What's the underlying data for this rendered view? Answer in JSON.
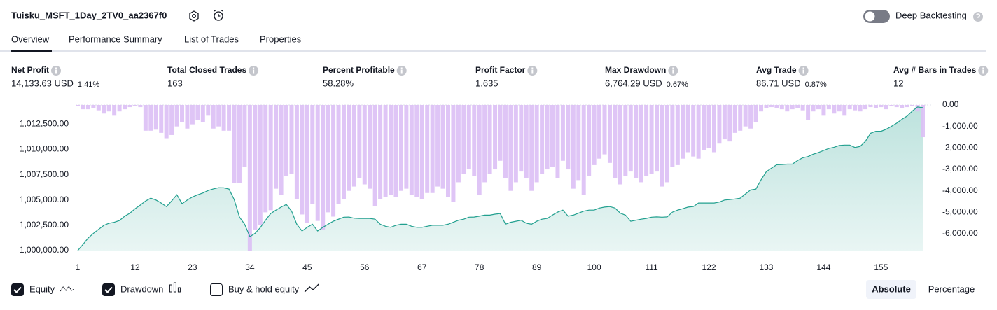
{
  "header": {
    "title": "Tuisku_MSFT_1Day_2TV0_aa2367f0",
    "toggle_label": "Deep Backtesting"
  },
  "tabs": [
    "Overview",
    "Performance Summary",
    "List of Trades",
    "Properties"
  ],
  "metrics": [
    {
      "label": "Net Profit",
      "value": "14,133.63 USD",
      "percent": "1.41%",
      "color": "#22ab94"
    },
    {
      "label": "Total Closed Trades",
      "value": "163",
      "color": "#131722"
    },
    {
      "label": "Percent Profitable",
      "value": "58.28%",
      "color": "#22ab94"
    },
    {
      "label": "Profit Factor",
      "value": "1.635",
      "color": "#22ab94"
    },
    {
      "label": "Max Drawdown",
      "value": "6,764.29 USD",
      "percent": "0.67%",
      "color": "#f23645"
    },
    {
      "label": "Avg Trade",
      "value": "86.71 USD",
      "percent": "0.87%",
      "color": "#22ab94"
    },
    {
      "label": "Avg # Bars in Trades",
      "value": "12",
      "color": "#131722"
    }
  ],
  "chart_data": {
    "type": "combo",
    "x": [
      1,
      2,
      3,
      4,
      5,
      6,
      7,
      8,
      9,
      10,
      11,
      12,
      13,
      14,
      15,
      16,
      17,
      18,
      19,
      20,
      21,
      22,
      23,
      24,
      25,
      26,
      27,
      28,
      29,
      30,
      31,
      32,
      33,
      34,
      35,
      36,
      37,
      38,
      39,
      40,
      41,
      42,
      43,
      44,
      45,
      46,
      47,
      48,
      49,
      50,
      51,
      52,
      53,
      54,
      55,
      56,
      57,
      58,
      59,
      60,
      61,
      62,
      63,
      64,
      65,
      66,
      67,
      68,
      69,
      70,
      71,
      72,
      73,
      74,
      75,
      76,
      77,
      78,
      79,
      80,
      81,
      82,
      83,
      84,
      85,
      86,
      87,
      88,
      89,
      90,
      91,
      92,
      93,
      94,
      95,
      96,
      97,
      98,
      99,
      100,
      101,
      102,
      103,
      104,
      105,
      106,
      107,
      108,
      109,
      110,
      111,
      112,
      113,
      114,
      115,
      116,
      117,
      118,
      119,
      120,
      121,
      122,
      123,
      124,
      125,
      126,
      127,
      128,
      129,
      130,
      131,
      132,
      133,
      134,
      135,
      136,
      137,
      138,
      139,
      140,
      141,
      142,
      143,
      144,
      145,
      146,
      147,
      148,
      149,
      150,
      151,
      152,
      153,
      154,
      155,
      156,
      157,
      158,
      159,
      160,
      161,
      162,
      163
    ],
    "xlim": [
      1,
      163
    ],
    "xticks": [
      1,
      12,
      23,
      34,
      45,
      56,
      67,
      78,
      89,
      100,
      111,
      122,
      133,
      144,
      155
    ],
    "ylim": [
      1000000,
      1014400
    ],
    "yticks": [
      {
        "value": 1000000,
        "label": "1,000,000.00"
      },
      {
        "value": 1002500,
        "label": "1,002,500.00"
      },
      {
        "value": 1005000,
        "label": "1,005,000.00"
      },
      {
        "value": 1007500,
        "label": "1,007,500.00"
      },
      {
        "value": 1010000,
        "label": "1,010,000.00"
      },
      {
        "value": 1012500,
        "label": "1,012,500.00"
      }
    ],
    "y2lim": [
      -6780,
      0
    ],
    "y2ticks": [
      {
        "value": 0,
        "label": "0.00"
      },
      {
        "value": -1000,
        "label": "-1,000.00"
      },
      {
        "value": -2000,
        "label": "-2,000.00"
      },
      {
        "value": -3000,
        "label": "-3,000.00"
      },
      {
        "value": -4000,
        "label": "-4,000.00"
      },
      {
        "value": -5000,
        "label": "-5,000.00"
      },
      {
        "value": -6000,
        "label": "-6,000.00"
      }
    ],
    "series": [
      {
        "name": "Equity",
        "type": "area",
        "color": "#22a08f",
        "values": [
          1000000,
          1000600,
          1001240,
          1001700,
          1002100,
          1002490,
          1002700,
          1002800,
          1002970,
          1003400,
          1003700,
          1004140,
          1004500,
          1004900,
          1005180,
          1005000,
          1004700,
          1004350,
          1004900,
          1005520,
          1004630,
          1005000,
          1005300,
          1005520,
          1005700,
          1005940,
          1006100,
          1006215,
          1006200,
          1006080,
          1005040,
          1003315,
          1002600,
          1001380,
          1001700,
          1002280,
          1003000,
          1003660,
          1004000,
          1004300,
          1004560,
          1003900,
          1002600,
          1001930,
          1002300,
          1002600,
          1001930,
          1002300,
          1002600,
          1002900,
          1003100,
          1003300,
          1003315,
          1003200,
          1003180,
          1003180,
          1003180,
          1003100,
          1002600,
          1002400,
          1002300,
          1002500,
          1002600,
          1002600,
          1002400,
          1002300,
          1002300,
          1002400,
          1002500,
          1002500,
          1002500,
          1002600,
          1002800,
          1003000,
          1003100,
          1003300,
          1003315,
          1003400,
          1003500,
          1003500,
          1003600,
          1003660,
          1002600,
          1002800,
          1002900,
          1003000,
          1002700,
          1002600,
          1002900,
          1003100,
          1003180,
          1003500,
          1003800,
          1004000,
          1003400,
          1003500,
          1003700,
          1003900,
          1004000,
          1004000,
          1004200,
          1004300,
          1004350,
          1004200,
          1003700,
          1003500,
          1002900,
          1003000,
          1003100,
          1003180,
          1003300,
          1003330,
          1003300,
          1003330,
          1003800,
          1004000,
          1004140,
          1004300,
          1004350,
          1004700,
          1004700,
          1004700,
          1004700,
          1004800,
          1005000,
          1005040,
          1005100,
          1005180,
          1005600,
          1006000,
          1006080,
          1007000,
          1007800,
          1008150,
          1008490,
          1008500,
          1008550,
          1008550,
          1008900,
          1009180,
          1009300,
          1009530,
          1009700,
          1009900,
          1010100,
          1010220,
          1010400,
          1010430,
          1010430,
          1010200,
          1010300,
          1010800,
          1011600,
          1011800,
          1011800,
          1012000,
          1012290,
          1012600,
          1012980,
          1013300,
          1013800,
          1014200,
          1014134
        ]
      },
      {
        "name": "Drawdown",
        "type": "bar",
        "axis": "y2",
        "color": "#dcbff5",
        "values": [
          -50,
          -200,
          -200,
          -150,
          -250,
          -400,
          -300,
          -500,
          -300,
          -200,
          -100,
          -50,
          -100,
          -1200,
          -1200,
          -1150,
          -1300,
          -1550,
          -1400,
          -1000,
          -800,
          -1100,
          -900,
          -700,
          -800,
          -500,
          -1100,
          -1000,
          -1200,
          -1200,
          -3650,
          -3650,
          -2900,
          -6780,
          -5800,
          -5600,
          -5000,
          -4900,
          -3900,
          -4200,
          -3300,
          -3200,
          -4400,
          -5100,
          -5500,
          -4600,
          -5400,
          -5800,
          -5000,
          -5200,
          -4600,
          -4400,
          -4000,
          -3800,
          -3400,
          -3700,
          -3900,
          -4700,
          -4400,
          -4300,
          -4200,
          -4300,
          -4000,
          -3900,
          -4200,
          -4300,
          -4400,
          -4100,
          -4100,
          -3800,
          -3900,
          -4300,
          -4500,
          -3600,
          -3200,
          -3000,
          -3300,
          -4200,
          -3600,
          -3200,
          -3000,
          -2600,
          -3400,
          -4000,
          -3600,
          -3100,
          -3400,
          -4000,
          -3600,
          -3200,
          -3000,
          -2900,
          -3400,
          -2600,
          -3000,
          -3900,
          -3500,
          -4200,
          -3300,
          -2800,
          -2500,
          -2300,
          -2700,
          -3400,
          -3700,
          -3300,
          -3100,
          -3400,
          -3600,
          -3300,
          -3200,
          -3100,
          -3800,
          -3600,
          -2900,
          -2800,
          -2500,
          -2200,
          -2400,
          -2500,
          -2100,
          -2000,
          -2200,
          -1800,
          -1600,
          -1700,
          -1300,
          -1200,
          -1000,
          -1100,
          -800,
          -300,
          -150,
          -100,
          -150,
          -200,
          -300,
          -200,
          -150,
          -250,
          -700,
          -300,
          -200,
          -500,
          -200,
          -400,
          -300,
          -500,
          -200,
          -250,
          -300,
          -200,
          -100,
          -150,
          -100,
          -200,
          -50,
          -100,
          -150,
          -100,
          -50,
          -300,
          -1500
        ]
      }
    ]
  },
  "controls": {
    "extra_checkbox": "Buy & hold equity",
    "checked": [
      true,
      true,
      false
    ],
    "buttons": [
      "Absolute",
      "Percentage"
    ],
    "active_button": 0
  }
}
